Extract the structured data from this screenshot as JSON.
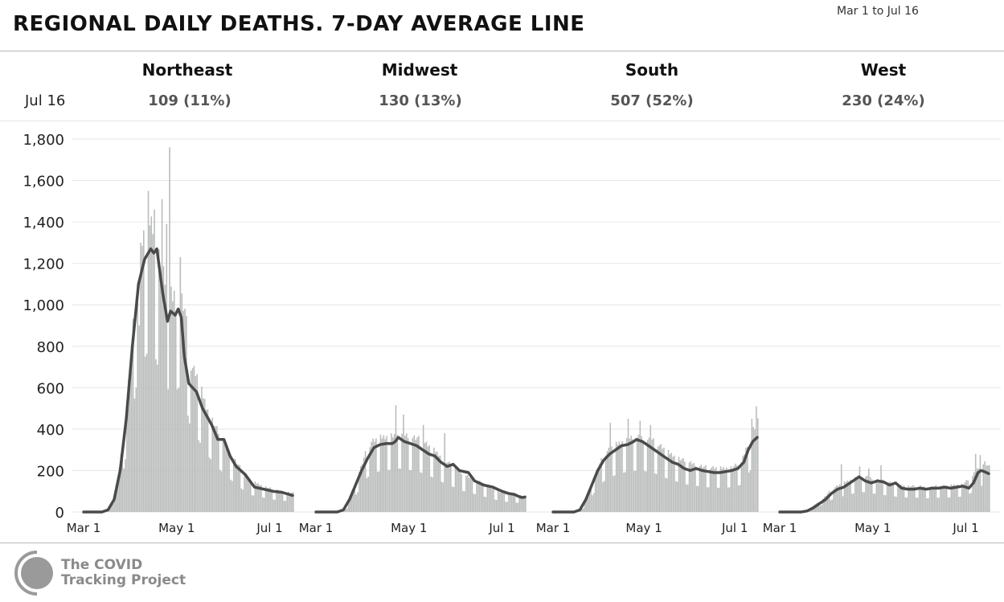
{
  "header": {
    "title": "REGIONAL DAILY DEATHS. 7-DAY AVERAGE LINE",
    "date_range": "Mar 1 to Jul 16"
  },
  "summary": {
    "date_label": "Jul 16",
    "regions": [
      {
        "name": "Northeast",
        "value": "109 (11%)"
      },
      {
        "name": "Midwest",
        "value": "130 (13%)"
      },
      {
        "name": "South",
        "value": "507 (52%)"
      },
      {
        "name": "West",
        "value": "230 (24%)"
      }
    ]
  },
  "footer": {
    "org_line1": "The COVID",
    "org_line2": "Tracking Project"
  },
  "colors": {
    "bar": "#b9bcbb",
    "line": "#4a4a4a",
    "grid": "#e6e6e6",
    "axis": "#222222"
  },
  "chart_data": {
    "type": "bar",
    "ylim": [
      0,
      1800
    ],
    "yticks": [
      0,
      200,
      400,
      600,
      800,
      1000,
      1200,
      1400,
      1600,
      1800
    ],
    "ytick_labels": [
      "0",
      "200",
      "400",
      "600",
      "800",
      "1,000",
      "1,200",
      "1,400",
      "1,600",
      "1,800"
    ],
    "xticks": [
      {
        "day": 0,
        "label": "Mar 1"
      },
      {
        "day": 61,
        "label": "May 1"
      },
      {
        "day": 122,
        "label": "Jul 1"
      }
    ],
    "x_range_days": [
      0,
      137
    ],
    "grid": true,
    "panels": [
      {
        "name": "Northeast",
        "daily_keys": [
          [
            0,
            0
          ],
          [
            10,
            0
          ],
          [
            14,
            5
          ],
          [
            18,
            40
          ],
          [
            22,
            150
          ],
          [
            26,
            350
          ],
          [
            30,
            650
          ],
          [
            34,
            1000
          ],
          [
            38,
            1200
          ],
          [
            42,
            1300
          ],
          [
            46,
            1270
          ],
          [
            50,
            1100
          ],
          [
            54,
            1000
          ],
          [
            58,
            950
          ],
          [
            62,
            1000
          ],
          [
            66,
            900
          ],
          [
            70,
            650
          ],
          [
            74,
            600
          ],
          [
            80,
            470
          ],
          [
            86,
            380
          ],
          [
            92,
            300
          ],
          [
            100,
            220
          ],
          [
            108,
            140
          ],
          [
            116,
            120
          ],
          [
            124,
            100
          ],
          [
            131,
            90
          ],
          [
            137,
            85
          ]
        ],
        "spikes": [
          [
            42,
            1550
          ],
          [
            46,
            1460
          ],
          [
            51,
            1510
          ],
          [
            54,
            1390
          ],
          [
            56,
            1760
          ],
          [
            60,
            950
          ],
          [
            36,
            900
          ],
          [
            63,
            1230
          ]
        ],
        "avg": [
          [
            0,
            0
          ],
          [
            12,
            0
          ],
          [
            16,
            10
          ],
          [
            20,
            60
          ],
          [
            24,
            200
          ],
          [
            28,
            450
          ],
          [
            32,
            800
          ],
          [
            36,
            1100
          ],
          [
            40,
            1220
          ],
          [
            44,
            1270
          ],
          [
            46,
            1250
          ],
          [
            48,
            1270
          ],
          [
            52,
            1050
          ],
          [
            55,
            920
          ],
          [
            57,
            970
          ],
          [
            60,
            950
          ],
          [
            62,
            980
          ],
          [
            64,
            940
          ],
          [
            66,
            750
          ],
          [
            69,
            620
          ],
          [
            74,
            580
          ],
          [
            78,
            500
          ],
          [
            84,
            420
          ],
          [
            88,
            350
          ],
          [
            92,
            350
          ],
          [
            96,
            270
          ],
          [
            100,
            220
          ],
          [
            106,
            180
          ],
          [
            112,
            120
          ],
          [
            118,
            110
          ],
          [
            124,
            100
          ],
          [
            130,
            95
          ],
          [
            137,
            80
          ]
        ]
      },
      {
        "name": "Midwest",
        "daily_keys": [
          [
            0,
            0
          ],
          [
            12,
            0
          ],
          [
            16,
            5
          ],
          [
            20,
            30
          ],
          [
            24,
            100
          ],
          [
            28,
            180
          ],
          [
            32,
            260
          ],
          [
            36,
            310
          ],
          [
            42,
            330
          ],
          [
            48,
            340
          ],
          [
            54,
            350
          ],
          [
            60,
            340
          ],
          [
            66,
            330
          ],
          [
            72,
            300
          ],
          [
            78,
            270
          ],
          [
            84,
            230
          ],
          [
            90,
            200
          ],
          [
            96,
            170
          ],
          [
            102,
            150
          ],
          [
            108,
            130
          ],
          [
            114,
            110
          ],
          [
            120,
            90
          ],
          [
            126,
            80
          ],
          [
            131,
            75
          ],
          [
            137,
            70
          ]
        ],
        "spikes": [
          [
            52,
            515
          ],
          [
            57,
            470
          ],
          [
            70,
            420
          ],
          [
            84,
            380
          ]
        ],
        "avg": [
          [
            0,
            0
          ],
          [
            14,
            0
          ],
          [
            18,
            10
          ],
          [
            22,
            60
          ],
          [
            26,
            130
          ],
          [
            30,
            200
          ],
          [
            34,
            260
          ],
          [
            38,
            310
          ],
          [
            42,
            325
          ],
          [
            46,
            330
          ],
          [
            50,
            330
          ],
          [
            52,
            340
          ],
          [
            54,
            360
          ],
          [
            58,
            340
          ],
          [
            62,
            330
          ],
          [
            66,
            320
          ],
          [
            70,
            300
          ],
          [
            74,
            280
          ],
          [
            78,
            270
          ],
          [
            82,
            240
          ],
          [
            86,
            220
          ],
          [
            90,
            230
          ],
          [
            94,
            200
          ],
          [
            100,
            190
          ],
          [
            104,
            150
          ],
          [
            110,
            130
          ],
          [
            116,
            120
          ],
          [
            122,
            100
          ],
          [
            126,
            90
          ],
          [
            130,
            85
          ],
          [
            133,
            75
          ],
          [
            135,
            70
          ],
          [
            137,
            72
          ]
        ]
      },
      {
        "name": "South",
        "daily_keys": [
          [
            0,
            0
          ],
          [
            12,
            0
          ],
          [
            16,
            5
          ],
          [
            20,
            30
          ],
          [
            24,
            100
          ],
          [
            28,
            170
          ],
          [
            32,
            230
          ],
          [
            36,
            270
          ],
          [
            42,
            300
          ],
          [
            48,
            320
          ],
          [
            54,
            330
          ],
          [
            60,
            330
          ],
          [
            66,
            320
          ],
          [
            72,
            290
          ],
          [
            78,
            260
          ],
          [
            84,
            240
          ],
          [
            90,
            220
          ],
          [
            96,
            210
          ],
          [
            102,
            200
          ],
          [
            108,
            195
          ],
          [
            114,
            195
          ],
          [
            120,
            200
          ],
          [
            126,
            220
          ],
          [
            130,
            300
          ],
          [
            134,
            370
          ],
          [
            137,
            400
          ]
        ],
        "spikes": [
          [
            38,
            430
          ],
          [
            50,
            450
          ],
          [
            58,
            440
          ],
          [
            65,
            420
          ],
          [
            136,
            510
          ],
          [
            133,
            450
          ]
        ],
        "avg": [
          [
            0,
            0
          ],
          [
            14,
            0
          ],
          [
            18,
            10
          ],
          [
            22,
            60
          ],
          [
            26,
            130
          ],
          [
            30,
            200
          ],
          [
            34,
            250
          ],
          [
            38,
            280
          ],
          [
            42,
            300
          ],
          [
            46,
            320
          ],
          [
            50,
            325
          ],
          [
            54,
            340
          ],
          [
            56,
            350
          ],
          [
            60,
            340
          ],
          [
            64,
            320
          ],
          [
            68,
            300
          ],
          [
            72,
            280
          ],
          [
            76,
            260
          ],
          [
            80,
            240
          ],
          [
            84,
            230
          ],
          [
            88,
            210
          ],
          [
            92,
            200
          ],
          [
            96,
            210
          ],
          [
            100,
            200
          ],
          [
            104,
            195
          ],
          [
            108,
            190
          ],
          [
            112,
            190
          ],
          [
            116,
            195
          ],
          [
            120,
            200
          ],
          [
            124,
            210
          ],
          [
            128,
            240
          ],
          [
            131,
            300
          ],
          [
            134,
            340
          ],
          [
            137,
            360
          ]
        ]
      },
      {
        "name": "West",
        "daily_keys": [
          [
            0,
            0
          ],
          [
            12,
            0
          ],
          [
            16,
            5
          ],
          [
            20,
            20
          ],
          [
            24,
            40
          ],
          [
            28,
            60
          ],
          [
            32,
            90
          ],
          [
            36,
            110
          ],
          [
            42,
            130
          ],
          [
            48,
            150
          ],
          [
            54,
            160
          ],
          [
            60,
            150
          ],
          [
            66,
            140
          ],
          [
            72,
            130
          ],
          [
            78,
            120
          ],
          [
            84,
            115
          ],
          [
            90,
            115
          ],
          [
            96,
            110
          ],
          [
            102,
            115
          ],
          [
            108,
            115
          ],
          [
            114,
            120
          ],
          [
            120,
            125
          ],
          [
            126,
            160
          ],
          [
            130,
            200
          ],
          [
            134,
            220
          ],
          [
            137,
            200
          ]
        ],
        "spikes": [
          [
            40,
            230
          ],
          [
            52,
            220
          ],
          [
            58,
            210
          ],
          [
            66,
            225
          ],
          [
            128,
            280
          ],
          [
            131,
            275
          ]
        ],
        "avg": [
          [
            0,
            0
          ],
          [
            14,
            0
          ],
          [
            18,
            5
          ],
          [
            22,
            20
          ],
          [
            26,
            40
          ],
          [
            30,
            60
          ],
          [
            34,
            90
          ],
          [
            38,
            110
          ],
          [
            42,
            120
          ],
          [
            46,
            140
          ],
          [
            50,
            160
          ],
          [
            52,
            170
          ],
          [
            56,
            150
          ],
          [
            60,
            140
          ],
          [
            64,
            150
          ],
          [
            68,
            145
          ],
          [
            72,
            130
          ],
          [
            76,
            140
          ],
          [
            80,
            115
          ],
          [
            84,
            110
          ],
          [
            88,
            110
          ],
          [
            92,
            115
          ],
          [
            96,
            110
          ],
          [
            100,
            115
          ],
          [
            104,
            115
          ],
          [
            108,
            120
          ],
          [
            112,
            115
          ],
          [
            116,
            120
          ],
          [
            120,
            125
          ],
          [
            124,
            115
          ],
          [
            127,
            140
          ],
          [
            130,
            190
          ],
          [
            132,
            200
          ],
          [
            134,
            195
          ],
          [
            137,
            185
          ]
        ]
      }
    ]
  }
}
